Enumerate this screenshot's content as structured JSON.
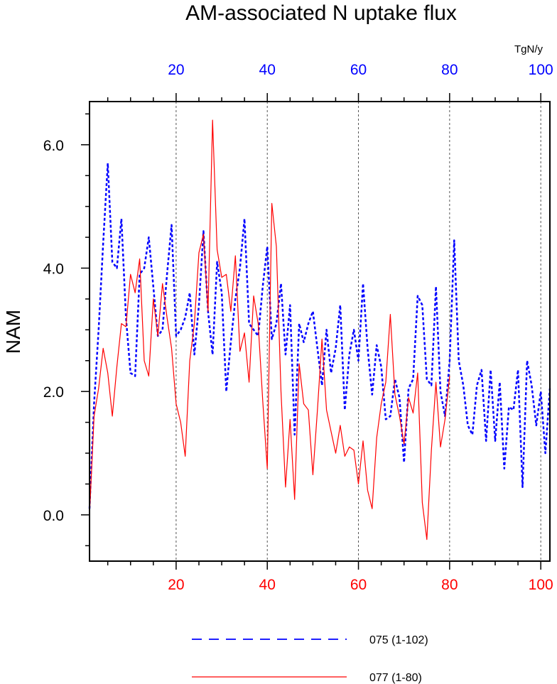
{
  "chart_data": {
    "type": "line",
    "title": "AM-associated N uptake flux",
    "ylabel": "NAM",
    "units": "TgN/y",
    "xlim": [
      1,
      102
    ],
    "ylim": [
      -0.75,
      6.7
    ],
    "grid": "dashed vertical lines at x = 20, 40, 60, 80, 100",
    "legend_position": "bottom",
    "x_ticks": [
      "20",
      "40",
      "60",
      "80",
      "100"
    ],
    "y_ticks": [
      "0.0",
      "2.0",
      "4.0",
      "6.0"
    ],
    "series": [
      {
        "name": "075 (1-102)",
        "axis": "top",
        "color": "#0000ff",
        "style": "dashed",
        "x": [
          1,
          2,
          3,
          4,
          5,
          6,
          7,
          8,
          9,
          10,
          11,
          12,
          13,
          14,
          15,
          16,
          17,
          18,
          19,
          20,
          21,
          22,
          23,
          24,
          25,
          26,
          27,
          28,
          29,
          30,
          31,
          32,
          33,
          34,
          35,
          36,
          37,
          38,
          39,
          40,
          41,
          42,
          43,
          44,
          45,
          46,
          47,
          48,
          49,
          50,
          51,
          52,
          53,
          54,
          55,
          56,
          57,
          58,
          59,
          60,
          61,
          62,
          63,
          64,
          65,
          66,
          67,
          68,
          69,
          70,
          71,
          72,
          73,
          74,
          75,
          76,
          77,
          78,
          79,
          80,
          81,
          82,
          83,
          84,
          85,
          86,
          87,
          88,
          89,
          90,
          91,
          92,
          93,
          94,
          95,
          96,
          97,
          98,
          99,
          100,
          101,
          102
        ],
        "values": [
          0.1,
          1.8,
          3.0,
          4.4,
          5.7,
          4.1,
          4.0,
          4.8,
          3.2,
          2.3,
          2.25,
          3.9,
          4.0,
          4.5,
          3.7,
          2.9,
          3.0,
          3.9,
          4.7,
          2.9,
          3.0,
          3.2,
          3.6,
          2.6,
          3.4,
          4.6,
          3.3,
          2.6,
          4.1,
          3.6,
          2.0,
          2.8,
          3.5,
          4.0,
          4.8,
          3.1,
          3.0,
          2.9,
          3.7,
          4.35,
          2.85,
          3.1,
          3.75,
          2.6,
          3.4,
          1.3,
          3.1,
          2.8,
          3.1,
          3.3,
          2.7,
          2.1,
          3.0,
          2.3,
          2.7,
          3.4,
          1.7,
          2.6,
          3.0,
          2.5,
          3.75,
          2.7,
          1.95,
          2.75,
          2.4,
          1.55,
          1.6,
          2.2,
          1.9,
          0.85,
          2.05,
          2.2,
          3.55,
          3.4,
          2.2,
          2.1,
          3.7,
          2.0,
          1.6,
          2.5,
          4.45,
          2.5,
          2.1,
          1.45,
          1.3,
          2.1,
          2.35,
          1.2,
          2.35,
          1.2,
          2.15,
          0.75,
          1.75,
          1.7,
          2.35,
          0.45,
          2.5,
          2.1,
          1.45,
          2.0,
          1.0,
          2.05
        ]
      },
      {
        "name": "077 (1-80)",
        "axis": "bottom",
        "color": "#ff0000",
        "style": "solid",
        "x": [
          1,
          2,
          3,
          4,
          5,
          6,
          7,
          8,
          9,
          10,
          11,
          12,
          13,
          14,
          15,
          16,
          17,
          18,
          19,
          20,
          21,
          22,
          23,
          24,
          25,
          26,
          27,
          28,
          29,
          30,
          31,
          32,
          33,
          34,
          35,
          36,
          37,
          38,
          39,
          40,
          41,
          42,
          43,
          44,
          45,
          46,
          47,
          48,
          49,
          50,
          51,
          52,
          53,
          54,
          55,
          56,
          57,
          58,
          59,
          60,
          61,
          62,
          63,
          64,
          65,
          66,
          67,
          68,
          69,
          70,
          71,
          72,
          73,
          74,
          75,
          76,
          77,
          78,
          79,
          80
        ],
        "values": [
          0.0,
          1.6,
          2.05,
          2.7,
          2.3,
          1.6,
          2.4,
          3.1,
          3.05,
          3.9,
          3.6,
          4.15,
          2.5,
          2.25,
          3.5,
          2.9,
          3.75,
          3.2,
          2.7,
          1.8,
          1.5,
          0.95,
          2.5,
          3.1,
          4.25,
          4.55,
          3.3,
          6.4,
          4.3,
          3.85,
          3.9,
          3.3,
          4.2,
          2.65,
          2.95,
          2.15,
          3.55,
          3.1,
          1.85,
          0.75,
          5.05,
          4.35,
          2.0,
          0.45,
          1.55,
          0.25,
          2.45,
          1.8,
          1.7,
          0.65,
          1.7,
          2.85,
          1.7,
          1.35,
          1.0,
          1.45,
          0.95,
          1.1,
          1.05,
          0.5,
          1.2,
          0.4,
          0.1,
          1.25,
          1.8,
          2.15,
          3.25,
          1.95,
          1.6,
          1.15,
          1.9,
          1.65,
          2.3,
          0.2,
          -0.4,
          1.05,
          2.15,
          1.1,
          1.55,
          2.25
        ]
      }
    ]
  }
}
